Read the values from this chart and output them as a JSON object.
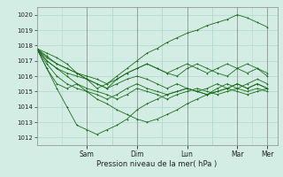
{
  "xlabel": "Pression niveau de la mer( hPa )",
  "ylim": [
    1011.5,
    1020.5
  ],
  "yticks": [
    1012,
    1013,
    1014,
    1015,
    1016,
    1017,
    1018,
    1019,
    1020
  ],
  "background_color": "#d4ede4",
  "grid_color": "#b0d9cb",
  "line_color": "#1a6b1a",
  "days": [
    "Sam",
    "Dim",
    "Lun",
    "Mar",
    "Mer"
  ],
  "day_x": [
    1.0,
    2.0,
    3.0,
    4.0,
    4.6
  ],
  "xlim": [
    0,
    4.8
  ],
  "series": [
    [
      1017.8,
      1017.5,
      1017.2,
      1016.8,
      1016.2,
      1015.8,
      1015.2,
      1015.5,
      1016.0,
      1016.5,
      1017.0,
      1017.5,
      1017.8,
      1018.2,
      1018.5,
      1018.8,
      1019.0,
      1019.3,
      1019.5,
      1019.7,
      1020.0,
      1019.8,
      1019.5,
      1019.2
    ],
    [
      1017.8,
      1016.5,
      1015.2,
      1014.0,
      1012.8,
      1012.5,
      1012.2,
      1012.5,
      1012.8,
      1013.2,
      1013.8,
      1014.2,
      1014.5,
      1014.8,
      1015.0,
      1015.2,
      1015.0,
      1014.8,
      1015.2,
      1015.5,
      1015.2,
      1015.5,
      1015.8,
      1015.5
    ],
    [
      1017.8,
      1017.0,
      1016.5,
      1016.0,
      1015.5,
      1015.0,
      1014.5,
      1014.2,
      1013.8,
      1013.5,
      1013.2,
      1013.0,
      1013.2,
      1013.5,
      1013.8,
      1014.2,
      1014.5,
      1014.8,
      1015.0,
      1015.2,
      1015.5,
      1015.2,
      1015.5,
      1015.2
    ],
    [
      1017.8,
      1017.2,
      1016.8,
      1016.5,
      1016.2,
      1015.8,
      1015.5,
      1015.2,
      1015.8,
      1016.2,
      1016.5,
      1016.8,
      1016.5,
      1016.2,
      1016.5,
      1016.8,
      1016.5,
      1016.2,
      1016.5,
      1016.8,
      1016.5,
      1016.8,
      1016.5,
      1016.2
    ],
    [
      1017.8,
      1017.3,
      1016.8,
      1016.5,
      1016.2,
      1016.0,
      1015.8,
      1015.5,
      1015.8,
      1016.2,
      1016.5,
      1016.8,
      1016.5,
      1016.2,
      1016.0,
      1016.5,
      1016.8,
      1016.5,
      1016.2,
      1016.0,
      1016.5,
      1016.2,
      1016.5,
      1016.0
    ],
    [
      1017.8,
      1016.5,
      1015.5,
      1015.2,
      1015.5,
      1015.2,
      1015.0,
      1014.8,
      1014.5,
      1014.8,
      1015.2,
      1015.0,
      1014.8,
      1014.5,
      1014.8,
      1015.0,
      1015.2,
      1015.0,
      1014.8,
      1015.0,
      1015.2,
      1015.0,
      1015.2,
      1015.0
    ],
    [
      1017.8,
      1017.0,
      1016.5,
      1016.2,
      1016.0,
      1015.8,
      1015.5,
      1015.2,
      1015.5,
      1015.8,
      1016.0,
      1015.8,
      1015.5,
      1015.2,
      1015.5,
      1015.2,
      1015.0,
      1015.2,
      1015.5,
      1015.2,
      1015.5,
      1015.2,
      1015.5,
      1015.2
    ],
    [
      1017.8,
      1016.8,
      1016.0,
      1015.5,
      1015.2,
      1015.0,
      1014.8,
      1014.5,
      1014.8,
      1015.2,
      1015.5,
      1015.2,
      1015.0,
      1014.8,
      1015.0,
      1015.2,
      1015.0,
      1014.8,
      1015.0,
      1015.2,
      1015.0,
      1014.8,
      1015.0,
      1015.2
    ]
  ]
}
